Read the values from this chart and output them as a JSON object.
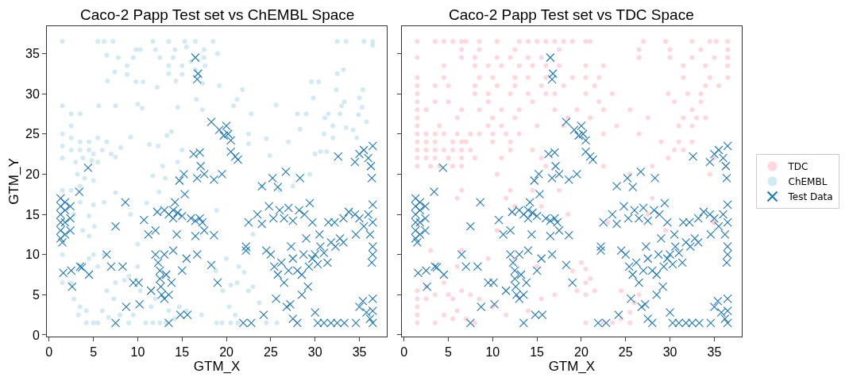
{
  "chart_data": [
    {
      "type": "scatter",
      "title": "Caco-2 Papp Test set vs ChEMBL Space",
      "xlabel": "GTM_X",
      "ylabel": "GTM_Y",
      "xlim": [
        -0.25,
        38.1
      ],
      "ylim": [
        -0.2,
        38.4
      ],
      "xticks": [
        0,
        5,
        10,
        15,
        20,
        25,
        30,
        35
      ],
      "yticks": [
        0,
        5,
        10,
        15,
        20,
        25,
        30,
        35
      ],
      "grid": false,
      "legend": "right",
      "series": [
        {
          "name": "ChEMBL",
          "color": "#add8e6",
          "marker": "circle",
          "x": [
            1.5,
            5.5,
            6.2,
            7.2,
            11.7,
            13.5,
            15.3,
            16.5,
            18.5,
            9.8,
            10.3,
            12,
            14.2,
            15.5,
            17.5,
            19,
            6.5,
            7.8,
            9.5,
            12.5,
            14,
            16,
            17.5,
            8.8,
            13.5,
            15,
            16.5,
            17.6,
            7.4,
            8.8,
            13.5,
            15,
            6.6,
            9.8,
            10.6,
            14.3,
            17.3,
            12.2,
            19.2,
            21.8,
            21.2,
            1.5,
            5.6,
            7.5,
            10,
            10.5,
            16.6,
            20.8,
            14.5,
            17.3,
            2.5,
            3.5,
            2.5,
            1.5,
            2.5,
            3.5,
            4.5,
            5.5,
            6.5,
            1.5,
            2.5,
            3.5,
            4.5,
            5,
            6,
            7,
            1.5,
            3.8,
            4.8,
            5.5,
            7.5,
            8.1,
            9.2,
            11.3,
            12.3,
            13.3,
            13.8,
            15,
            3,
            3.2,
            4,
            5,
            3.5,
            1.5,
            2.5,
            3.5,
            5,
            6.2,
            4.5,
            2.8,
            3.8,
            5.1,
            4.5,
            7.5,
            9.2,
            11,
            11.7,
            12.4,
            13.1,
            14.5,
            12.8,
            18.9,
            22.5,
            22.5,
            24.5,
            24.9,
            25.6,
            27,
            28.3,
            22.8,
            24,
            28,
            29,
            29.8,
            29.6,
            31.1,
            31,
            32,
            32,
            31.5,
            32.8,
            33,
            33.3,
            33.5,
            34.3,
            34.9,
            35,
            35.3,
            35.8,
            34.7,
            30,
            30.6,
            31.3,
            32.5,
            33.5,
            35.5,
            36.5,
            36.5,
            32.4,
            32.5,
            33.2,
            35.4,
            30.4,
            29.4,
            1.5,
            1.5,
            2.5,
            2.8,
            3.3,
            3.5,
            4.2,
            4.5,
            5,
            5.5,
            6.2,
            4.2,
            5,
            5.5,
            6,
            6.7,
            6.5,
            7.5,
            7.3,
            8,
            8.5,
            9,
            9,
            9.5,
            10,
            10,
            10.3,
            10.9,
            11.7,
            12.5,
            13.2,
            11.5,
            12,
            13.5,
            14.2,
            14.7,
            15.5,
            17.2,
            18.9,
            19.5,
            20.5,
            21.3,
            20.3,
            21,
            19.6,
            20.5,
            21.2,
            22.5,
            23,
            23.7,
            24.5,
            25.7,
            22,
            20,
            18.8,
            21.4,
            22.5,
            23,
            26,
            27.5
          ],
          "values": [
            36.5,
            36.5,
            36.5,
            36.5,
            36.5,
            36.5,
            36.5,
            36.5,
            36.5,
            35.5,
            35.5,
            35.5,
            35.5,
            35.8,
            35.5,
            35,
            34.8,
            34.5,
            34.5,
            34.5,
            34.5,
            34,
            34.5,
            33.5,
            33.5,
            33.5,
            33,
            33.5,
            32.7,
            32.4,
            32.5,
            32.4,
            31.6,
            31.5,
            31.5,
            31.6,
            31.3,
            30.8,
            31,
            30.5,
            29.3,
            28.5,
            28.5,
            28.5,
            28.7,
            28.2,
            29.3,
            28.5,
            28.3,
            28,
            27.5,
            27.5,
            26,
            25,
            24.5,
            24,
            24,
            24.5,
            24,
            23.5,
            23,
            23,
            23,
            22.5,
            23,
            22.5,
            22,
            22,
            21.7,
            21.5,
            22.1,
            23.3,
            24.6,
            23.7,
            23.5,
            24.8,
            25.3,
            23,
            21.5,
            20,
            19.5,
            19.2,
            18.5,
            18,
            18,
            16.5,
            16.2,
            16.5,
            14.8,
            15,
            13,
            13.5,
            12.3,
            17.7,
            15,
            16.4,
            19.8,
            17.8,
            19.5,
            21.5,
            21,
            15.5,
            25,
            23.8,
            24.4,
            22.3,
            28.6,
            24,
            25.6,
            27.5,
            18.5,
            27.5,
            27.5,
            29.5,
            31.5,
            27,
            25,
            26,
            24.5,
            27.5,
            27.5,
            28.5,
            29,
            25.8,
            25.5,
            27.4,
            29.5,
            28.3,
            26.5,
            24.5,
            22.5,
            22.8,
            22.8,
            36.5,
            36.5,
            36.5,
            36.5,
            36,
            30.5,
            32.5,
            33,
            30.5,
            31.5,
            20,
            10,
            6.5,
            6.5,
            4.5,
            2.5,
            3.5,
            3,
            9.5,
            10,
            8.5,
            10,
            1.5,
            1.5,
            1.5,
            3,
            2.2,
            5.5,
            6.5,
            4.5,
            2.5,
            6.8,
            7.3,
            1.5,
            2.5,
            8.5,
            11.3,
            5.5,
            1.5,
            1.5,
            1.5,
            1.5,
            3.5,
            4.5,
            3,
            2,
            3.5,
            3,
            2.5,
            1.5,
            1.5,
            1.5,
            1.5,
            3.5,
            2.5,
            5.5,
            6.2,
            6.5,
            5.5,
            6,
            4,
            1.5,
            1.5,
            7.8,
            9.5,
            8,
            8.5,
            10.5,
            12.5,
            18,
            18.5
          ]
        },
        {
          "name": "Test Data",
          "color": "#1f77b4",
          "marker": "cross",
          "x": [
            1.3,
            1.3,
            1.3,
            1.3,
            1.3,
            1.3,
            1.8,
            1.8,
            1.8,
            1.8,
            2.4,
            2.4,
            2.4,
            1.5,
            3.4,
            1.6,
            2.5,
            2.6,
            3.5,
            3.7,
            4.5,
            4.4,
            6.5,
            7,
            7.5,
            7.5,
            8.3,
            8.6,
            8.7,
            9.5,
            10.1,
            10.2,
            10.7,
            11.2,
            12,
            11.5,
            12,
            12.3,
            12.5,
            12.5,
            12.6,
            12.7,
            13,
            13,
            13.2,
            13.5,
            13.8,
            12.2,
            13,
            13.5,
            14,
            14.5,
            14.2,
            14,
            15,
            15.3,
            14.7,
            15.2,
            14,
            14.4,
            15,
            15.5,
            15.6,
            14.8,
            16,
            16.5,
            17,
            17.3,
            17.5,
            16.5,
            16.7,
            16.3,
            17,
            17.1,
            17.5,
            16.7,
            18.6,
            18.6,
            18.3,
            19,
            16.5,
            16.8,
            16.7,
            18.3,
            19.2,
            19.7,
            20.2,
            20.5,
            20,
            20.5,
            21,
            21.3,
            19.5,
            22.2,
            22.2,
            21.9,
            22.8,
            24.2,
            24,
            25.2,
            25.8,
            26.7,
            28.3,
            22.5,
            23.5,
            24,
            24.8,
            25.3,
            26,
            26.5,
            27,
            27.5,
            28.2,
            28.8,
            29.4,
            29.7,
            24.5,
            25,
            25.4,
            25.8,
            26.2,
            26.5,
            27,
            27.3,
            27.5,
            28,
            28.5,
            28.7,
            29,
            29.3,
            29.7,
            30,
            30.3,
            30.6,
            31,
            31.4,
            31.8,
            32.3,
            32.8,
            33.2,
            30.5,
            25.6,
            26.8,
            27.2,
            27.5,
            28,
            28.5,
            29.2,
            30,
            30.3,
            31,
            31.8,
            32.5,
            33.3,
            31.5,
            32.2,
            33.2,
            32.6,
            34.5,
            35,
            35.5,
            36,
            36.5,
            36.3,
            36.4,
            34.5,
            35,
            35.5,
            36,
            36.5,
            36.2,
            36.5,
            36.5,
            36.5,
            36.4,
            34.6,
            33.8,
            35,
            35.4,
            35.8,
            36.2,
            36.5,
            36.5,
            36.5,
            34.6,
            13.5
          ],
          "values": [
            12,
            13,
            14,
            15,
            16,
            17,
            12.5,
            14,
            15.5,
            16.5,
            13,
            14.5,
            16,
            11.5,
            17.8,
            7.7,
            8,
            6,
            8.5,
            8.4,
            7.5,
            20.8,
            10,
            8.5,
            13.5,
            1.5,
            8.5,
            16.5,
            3.5,
            6.5,
            6.5,
            3.8,
            14.3,
            12.5,
            13,
            5.5,
            10,
            9,
            8,
            7,
            6,
            5,
            4.5,
            10,
            7.5,
            5,
            6.5,
            15.3,
            15.5,
            15,
            15.5,
            15.2,
            16.5,
            14.5,
            14.8,
            17.5,
            19.2,
            20,
            10.5,
            12.5,
            8,
            9.5,
            2.5,
            2.5,
            14.5,
            14.2,
            14.5,
            14,
            13,
            12.3,
            10,
            22.5,
            22.7,
            21,
            20,
            19.5,
            19.3,
            12.4,
            8.7,
            6.5,
            34.5,
            32.5,
            31.8,
            26.5,
            25.5,
            24.8,
            25,
            24.2,
            26,
            22.8,
            22.2,
            21.8,
            20,
            11,
            10.5,
            1.5,
            1.5,
            2.5,
            18.5,
            19.5,
            18.4,
            20.3,
            19.5,
            14,
            15,
            13.8,
            16,
            14.5,
            15.5,
            14.5,
            15.8,
            14.2,
            15.5,
            15,
            16.4,
            14,
            10.5,
            10,
            8.5,
            7.5,
            9,
            6.5,
            8,
            11,
            9.5,
            8,
            7.5,
            10,
            12,
            8.5,
            9.5,
            10,
            8.8,
            11,
            10.2,
            9,
            11.5,
            11,
            12,
            11.5,
            12.5,
            4.5,
            3.5,
            3.8,
            2,
            1.5,
            5,
            6,
            2.8,
            1.5,
            1.5,
            1.5,
            1.5,
            1.5,
            14,
            14,
            14.5,
            22.2,
            21.5,
            22.5,
            23,
            22,
            23.5,
            21,
            19.5,
            15,
            14.5,
            13.5,
            15,
            14,
            12.5,
            16.2,
            11,
            10,
            9,
            12.5,
            15.3,
            3.5,
            4.2,
            2.8,
            2,
            1.5,
            3,
            4.5,
            1.5,
            1.5
          ]
        }
      ]
    },
    {
      "type": "scatter",
      "title": "Caco-2 Papp Test set vs TDC Space",
      "xlabel": "GTM_X",
      "xlim": [
        -0.25,
        38.1
      ],
      "ylim": [
        -0.2,
        38.4
      ],
      "xticks": [
        0,
        5,
        10,
        15,
        20,
        25,
        30,
        35
      ],
      "yticks": [
        0,
        5,
        10,
        15,
        20,
        25,
        30,
        35
      ],
      "grid": false,
      "legend": "right",
      "tick_labels": "x",
      "series": [
        {
          "name": "TDC",
          "color": "#ffb6c1",
          "marker": "circle",
          "x": [
            1.5,
            3.5,
            4.5,
            5.5,
            6.5,
            7,
            8.5,
            10.5,
            13,
            14,
            15,
            16,
            17,
            18,
            19,
            20.5,
            21,
            27,
            29.5,
            32.5,
            34.5,
            35.2,
            36.5,
            6.5,
            8.5,
            12.5,
            17.5,
            26.5,
            30,
            33.5,
            36.5,
            1.5,
            6.5,
            8,
            10.5,
            12,
            14,
            15.5,
            26.5,
            30,
            32.5,
            35,
            36.5,
            4.5,
            8,
            9.5,
            11,
            13,
            14.5,
            16,
            17.5,
            20.5,
            22.5,
            31.5,
            34,
            36.5,
            1.5,
            4.5,
            8.5,
            10,
            12.5,
            14,
            16,
            19,
            20.5,
            22,
            31.5,
            34.5,
            36.5,
            1.5,
            3.5,
            5,
            8,
            10.5,
            12.5,
            15.5,
            18,
            21.5,
            34,
            35.5,
            1.5,
            8,
            9.5,
            12,
            14,
            16,
            17,
            20.5,
            23.5,
            29.8,
            32,
            33.5,
            1.5,
            3.5,
            5,
            9.5,
            14.5,
            22,
            30.5,
            33.5,
            1.5,
            2.5,
            6.5,
            8.5,
            11,
            13,
            17,
            19.5,
            22.5,
            25.5,
            32.5,
            1.5,
            6,
            10,
            12.5,
            18.5,
            21,
            27.5,
            31.5,
            33,
            34,
            1.5,
            4,
            9.5,
            11,
            15,
            18,
            24,
            31,
            32.5,
            1.5,
            2.5,
            3.5,
            4.5,
            6,
            7.5,
            8.5,
            10,
            11.5,
            13,
            22.5,
            26.5,
            1.5,
            2.5,
            3.5,
            5.5,
            6.5,
            7,
            10,
            12,
            29,
            31,
            32.5,
            1.5,
            2.5,
            3.5,
            4.5,
            5.5,
            6.5,
            7.5,
            12,
            14.5,
            30.5,
            31.5,
            1.5,
            2.5,
            3.5,
            5,
            6.5,
            8,
            11,
            15.5,
            29.8,
            35,
            1.5,
            3,
            4,
            5.5,
            6.5,
            16,
            22.5,
            28,
            10.5,
            25.5,
            34.5,
            6.5,
            14.5,
            12,
            17.5,
            6,
            11.5,
            28,
            12.5,
            15.5,
            18.5,
            27.5,
            23,
            35,
            10.5,
            29.5,
            3,
            6.5,
            9.5,
            6,
            12.5,
            15,
            20,
            20.5,
            19,
            20.5,
            21,
            19.5,
            20.5,
            21.5,
            2.5,
            1.5,
            1.5,
            1.5,
            1.5,
            1.5,
            3.5,
            2.5,
            3.5,
            4.5,
            5,
            5.5,
            6.5,
            7.5,
            8.5,
            6,
            4.5,
            5.5,
            7,
            8,
            10,
            11.5,
            14,
            15.5,
            17,
            20.5,
            22.5,
            23.5,
            24.5,
            25.5,
            25.5,
            26,
            24.5,
            26.5,
            35
          ],
          "values": [
            36.5,
            36.5,
            36.5,
            36.5,
            36.5,
            36.5,
            36.5,
            36.5,
            36.5,
            36.5,
            36.5,
            36.5,
            36.5,
            36.5,
            36.5,
            36.5,
            36.5,
            36.5,
            36.5,
            36.5,
            36.5,
            36.5,
            36.5,
            35.5,
            35.5,
            35.5,
            35.5,
            35.5,
            35.5,
            35.5,
            35.5,
            34.5,
            34.5,
            34.5,
            34.5,
            34.5,
            34.5,
            34.5,
            34.5,
            34.5,
            34.5,
            34.5,
            34.5,
            33.5,
            33.5,
            33.5,
            33.5,
            33.5,
            33.5,
            33.5,
            33.5,
            33.5,
            33.5,
            33.5,
            33.5,
            33.5,
            32,
            32,
            32,
            32,
            32,
            32,
            32,
            32,
            32,
            32,
            32,
            32,
            32,
            31,
            31,
            31,
            31,
            31,
            31,
            31,
            31,
            31,
            31,
            31,
            30,
            30,
            30,
            30,
            30,
            30,
            30,
            30,
            30,
            30,
            30,
            30,
            29,
            29,
            29,
            29,
            29,
            29,
            29,
            29,
            28,
            28,
            28,
            28,
            28,
            28,
            28,
            28,
            28,
            28,
            28,
            27,
            27,
            27,
            27,
            27,
            27,
            27,
            27,
            27,
            27,
            26,
            26,
            26,
            26,
            26,
            26,
            26,
            26,
            26,
            25,
            25,
            25,
            25,
            25,
            25,
            25,
            25,
            25,
            25,
            25,
            25,
            24,
            24,
            24,
            24,
            24,
            24,
            24,
            24,
            24,
            24,
            24,
            23,
            23,
            23,
            23,
            23,
            23,
            23,
            23,
            23,
            23,
            23,
            22,
            22,
            22,
            22,
            22,
            22,
            22,
            22,
            22,
            22,
            21,
            21,
            21,
            21,
            21,
            21,
            21,
            21,
            20,
            20,
            20,
            18,
            18,
            18,
            18,
            17,
            17,
            17,
            16,
            16,
            15,
            15,
            14,
            14,
            13,
            13,
            10.5,
            10.5,
            9.5,
            8.5,
            9.5,
            8.5,
            9,
            8.2,
            8,
            6.5,
            7,
            5.5,
            5,
            5.5,
            6,
            5.5,
            4.5,
            3.5,
            2.5,
            1.5,
            1.5,
            4.5,
            5,
            6.5,
            5,
            4.5,
            5.5,
            5,
            4.5,
            3,
            2.5,
            2,
            2,
            1.5,
            3.5,
            2.5,
            3,
            4.5,
            5,
            1.5,
            1.5,
            1.5,
            2,
            1.5,
            2.8,
            4,
            5.5,
            5,
            14
          ]
        },
        {
          "color": "#1f77b4",
          "marker": "cross",
          "x": [
            1.3,
            1.3,
            1.3,
            1.3,
            1.3,
            1.3,
            1.8,
            1.8,
            1.8,
            1.8,
            2.4,
            2.4,
            2.4,
            1.5,
            3.4,
            1.6,
            2.5,
            2.6,
            3.5,
            3.7,
            4.5,
            4.4,
            6.5,
            7,
            7.5,
            7.5,
            8.3,
            8.6,
            8.7,
            9.5,
            10.1,
            10.2,
            10.7,
            11.2,
            12,
            11.5,
            12,
            12.3,
            12.5,
            12.5,
            12.6,
            12.7,
            13,
            13,
            13.2,
            13.5,
            13.8,
            12.2,
            13,
            13.5,
            14,
            14.5,
            14.2,
            14,
            15,
            15.3,
            14.7,
            15.2,
            14,
            14.4,
            15,
            15.5,
            15.6,
            14.8,
            16,
            16.5,
            17,
            17.3,
            17.5,
            16.5,
            16.7,
            16.3,
            17,
            17.1,
            17.5,
            16.7,
            18.6,
            18.6,
            18.3,
            19,
            16.5,
            16.8,
            16.7,
            18.3,
            19.2,
            19.7,
            20.2,
            20.5,
            20,
            20.5,
            21,
            21.3,
            19.5,
            22.2,
            22.2,
            21.9,
            22.8,
            24.2,
            24,
            25.2,
            25.8,
            26.7,
            28.3,
            22.5,
            23.5,
            24,
            24.8,
            25.3,
            26,
            26.5,
            27,
            27.5,
            28.2,
            28.8,
            29.4,
            29.7,
            24.5,
            25,
            25.4,
            25.8,
            26.2,
            26.5,
            27,
            27.3,
            27.5,
            28,
            28.5,
            28.7,
            29,
            29.3,
            29.7,
            30,
            30.3,
            30.6,
            31,
            31.4,
            31.8,
            32.3,
            32.8,
            33.2,
            30.5,
            25.6,
            26.8,
            27.2,
            27.5,
            28,
            28.5,
            29.2,
            30,
            30.3,
            31,
            31.8,
            32.5,
            33.3,
            31.5,
            32.2,
            33.2,
            32.6,
            34.5,
            35,
            35.5,
            36,
            36.5,
            36.3,
            36.4,
            34.5,
            35,
            35.5,
            36,
            36.5,
            36.2,
            36.5,
            36.5,
            36.5,
            36.4,
            34.6,
            33.8,
            35,
            35.4,
            35.8,
            36.2,
            36.5,
            36.5,
            36.5,
            34.6,
            13.5
          ],
          "values": [
            12,
            13,
            14,
            15,
            16,
            17,
            12.5,
            14,
            15.5,
            16.5,
            13,
            14.5,
            16,
            11.5,
            17.8,
            7.7,
            8,
            6,
            8.5,
            8.4,
            7.5,
            20.8,
            10,
            8.5,
            13.5,
            1.5,
            8.5,
            16.5,
            3.5,
            6.5,
            6.5,
            3.8,
            14.3,
            12.5,
            13,
            5.5,
            10,
            9,
            8,
            7,
            6,
            5,
            4.5,
            10,
            7.5,
            5,
            6.5,
            15.3,
            15.5,
            15,
            15.5,
            15.2,
            16.5,
            14.5,
            14.8,
            17.5,
            19.2,
            20,
            10.5,
            12.5,
            8,
            9.5,
            2.5,
            2.5,
            14.5,
            14.2,
            14.5,
            14,
            13,
            12.3,
            10,
            22.5,
            22.7,
            21,
            20,
            19.5,
            19.3,
            12.4,
            8.7,
            6.5,
            34.5,
            32.5,
            31.8,
            26.5,
            25.5,
            24.8,
            25,
            24.2,
            26,
            22.8,
            22.2,
            21.8,
            20,
            11,
            10.5,
            1.5,
            1.5,
            2.5,
            18.5,
            19.5,
            18.4,
            20.3,
            19.5,
            14,
            15,
            13.8,
            16,
            14.5,
            15.5,
            14.5,
            15.8,
            14.2,
            15.5,
            15,
            16.4,
            14,
            10.5,
            10,
            8.5,
            7.5,
            9,
            6.5,
            8,
            11,
            9.5,
            8,
            7.5,
            10,
            12,
            8.5,
            9.5,
            10,
            8.8,
            11,
            10.2,
            9,
            11.5,
            11,
            12,
            11.5,
            12.5,
            4.5,
            3.5,
            3.8,
            2,
            1.5,
            5,
            6,
            2.8,
            1.5,
            1.5,
            1.5,
            1.5,
            1.5,
            14,
            14,
            14.5,
            22.2,
            21.5,
            22.5,
            23,
            22,
            23.5,
            21,
            19.5,
            15,
            14.5,
            13.5,
            15,
            14,
            12.5,
            16.2,
            11,
            10,
            9,
            12.5,
            15.3,
            3.5,
            4.2,
            2.8,
            2,
            1.5,
            3,
            4.5,
            1.5,
            1.5
          ]
        }
      ]
    }
  ]
}
